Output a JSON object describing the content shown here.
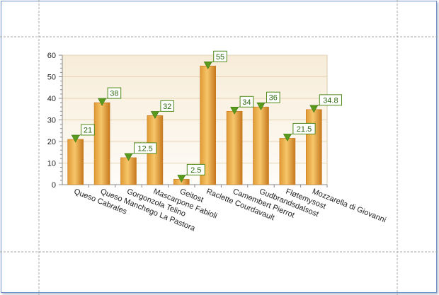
{
  "chart_data": {
    "type": "bar",
    "categories": [
      "Queso Cabrales",
      "Queso Manchego La Pastora",
      "Gorgonzola Telino",
      "Mascarpone Fabioli",
      "Geitost",
      "Raclette Courdavault",
      "Camembert Pierrot",
      "Gudbrandsdalsost",
      "Fløtemysost",
      "Mozzarella di Giovanni"
    ],
    "values": [
      21,
      38,
      12.5,
      32,
      2.5,
      55,
      34,
      36,
      21.5,
      34.8
    ],
    "value_labels": [
      "21",
      "38",
      "12.5",
      "32",
      "2.5",
      "55",
      "34",
      "36",
      "21.5",
      "34.8"
    ],
    "y_ticks": [
      "0",
      "10",
      "20",
      "30",
      "40",
      "50",
      "60"
    ],
    "ylim": [
      0,
      60
    ],
    "title": "",
    "xlabel": "",
    "ylabel": "",
    "grid": true,
    "legend": "none",
    "colors": {
      "bar_light": "#f6c66a",
      "bar_mid": "#e09a34",
      "bar_dark": "#c7781d",
      "plot_bg_top": "#f7ecd8",
      "plot_bg_bottom": "#fefcf8",
      "marker": "#5a9a1e",
      "label_border": "#4f8a1a",
      "label_text": "#2f6a12",
      "guide": "#a8a8a8"
    }
  }
}
